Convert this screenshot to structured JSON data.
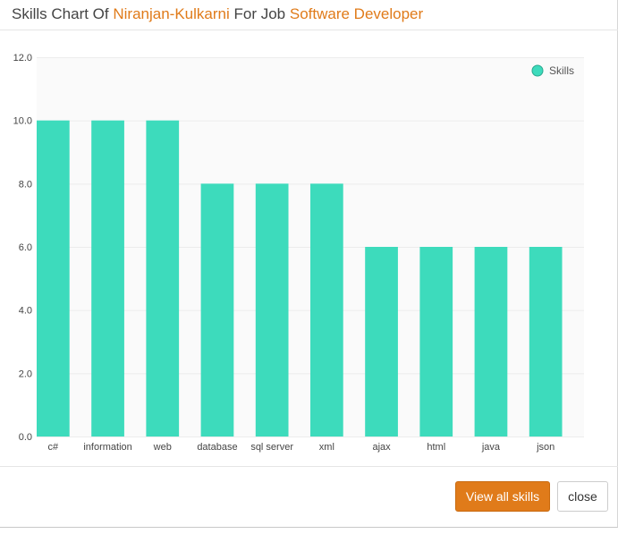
{
  "header": {
    "title_prefix": "Skills Chart Of",
    "candidate_name": "Niranjan-Kulkarni",
    "title_middle": "For Job",
    "job_title": "Software Developer"
  },
  "footer": {
    "view_all_label": "View all skills",
    "close_label": "close"
  },
  "colors": {
    "accent": "#e07b1a",
    "bar": "#3ddbbc",
    "grid": "#ececec",
    "plot_background": "#fafafa"
  },
  "chart_data": {
    "type": "bar",
    "title": "",
    "xlabel": "",
    "ylabel": "",
    "categories": [
      "c#",
      "information",
      "web",
      "database",
      "sql server",
      "xml",
      "ajax",
      "html",
      "java",
      "json"
    ],
    "series": [
      {
        "name": "Skills",
        "values": [
          10,
          10,
          10,
          8,
          8,
          8,
          6,
          6,
          6,
          6
        ]
      }
    ],
    "ylim": [
      0,
      12
    ],
    "yticks": [
      "0.0",
      "2.0",
      "4.0",
      "6.0",
      "8.0",
      "10.0",
      "12.0"
    ],
    "grid": true,
    "legend_position": "top-right"
  }
}
